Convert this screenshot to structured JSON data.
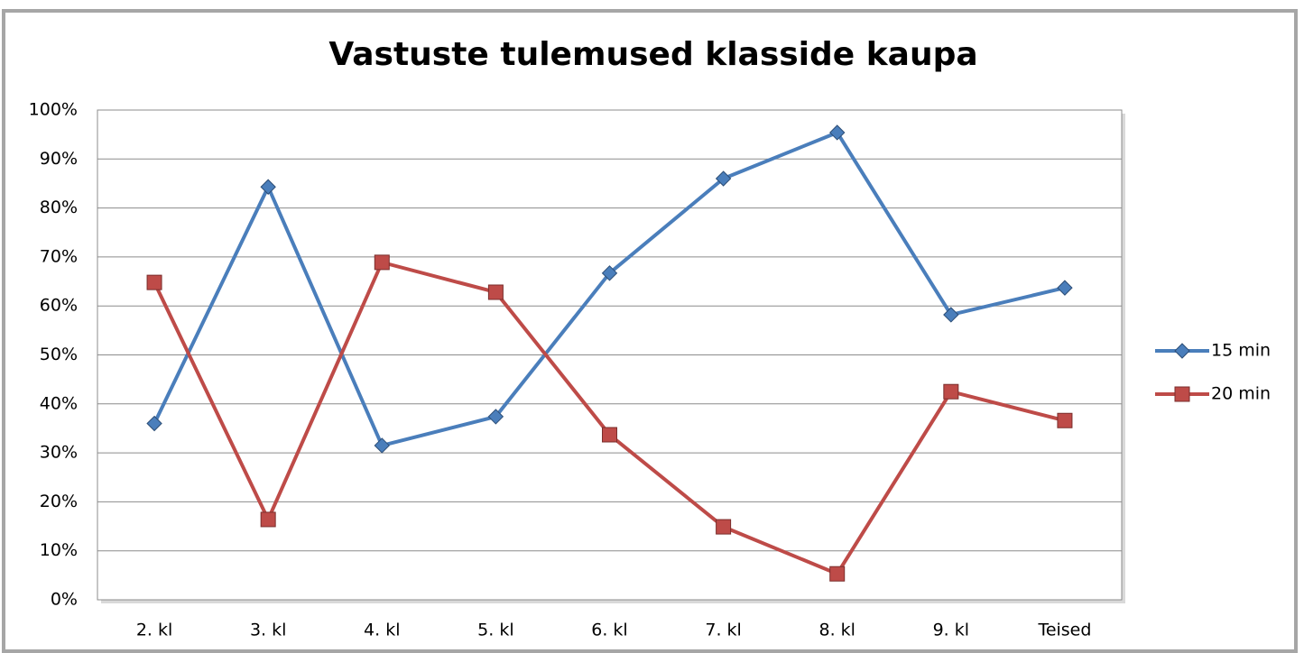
{
  "chart_data": {
    "type": "line",
    "title": "Vastuste tulemused klasside kaupa",
    "categories": [
      "2. kl",
      "3. kl",
      "4. kl",
      "5. kl",
      "6. kl",
      "7. kl",
      "8. kl",
      "9. kl",
      "Teised"
    ],
    "series": [
      {
        "name": "15 min",
        "color": "#4a7ebb",
        "marker": "diamond",
        "values": [
          36,
          84.3,
          31.5,
          37.4,
          66.7,
          86,
          95.4,
          58.2,
          63.7
        ]
      },
      {
        "name": "20 min",
        "color": "#be4b48",
        "marker": "square",
        "values": [
          64.8,
          16.4,
          68.9,
          62.8,
          33.7,
          14.9,
          5.3,
          42.5,
          36.6
        ]
      }
    ],
    "ylim": [
      0,
      100
    ],
    "yticks": [
      {
        "value": 0,
        "label": "0%"
      },
      {
        "value": 10,
        "label": "10%"
      },
      {
        "value": 20,
        "label": "20%"
      },
      {
        "value": 30,
        "label": "30%"
      },
      {
        "value": 40,
        "label": "40%"
      },
      {
        "value": 50,
        "label": "50%"
      },
      {
        "value": 60,
        "label": "60%"
      },
      {
        "value": 70,
        "label": "70%"
      },
      {
        "value": 80,
        "label": "80%"
      },
      {
        "value": 90,
        "label": "90%"
      },
      {
        "value": 100,
        "label": "100%"
      }
    ],
    "grid": true,
    "legend": "right"
  }
}
